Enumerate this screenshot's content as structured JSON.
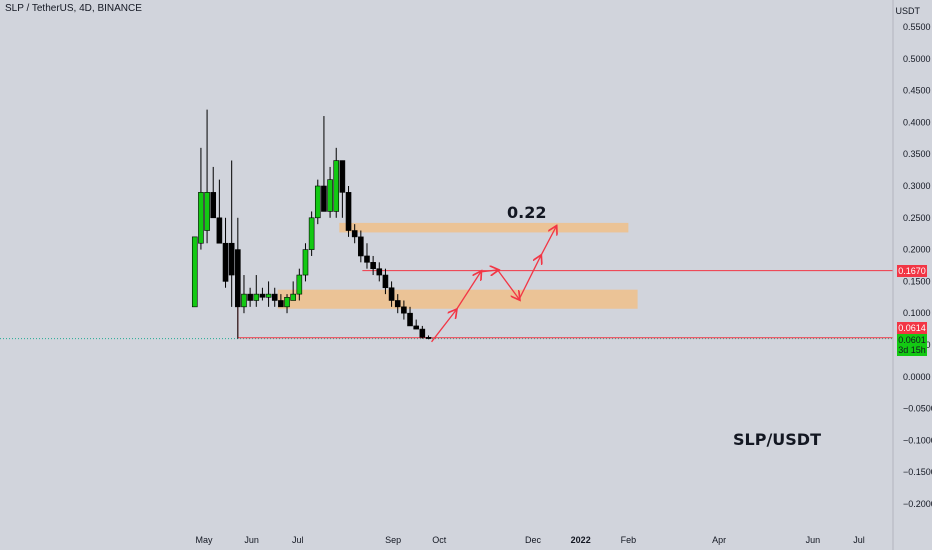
{
  "header": {
    "symbol_title": "SLP / TetherUS, 4D, BINANCE",
    "axis_unit": "USDT"
  },
  "annotations": {
    "target_label": "0.22",
    "pair_label": "SLP/USDT"
  },
  "price_tags": {
    "resistance": "0.1670",
    "last_low": "0.0614",
    "current": "0.0601",
    "countdown": "3d 15h"
  },
  "colors": {
    "background": "#d1d4dc",
    "up_candle": "#13c913",
    "down_candle": "#000000",
    "zone": "#f0c08a",
    "line": "#f23645",
    "arrow": "#f23645",
    "dotted": "#22ab94"
  },
  "chart_data": {
    "type": "candlestick",
    "title": "SLP / TetherUS, 4D, BINANCE",
    "ylabel": "USDT",
    "ylim": [
      -0.23,
      0.58
    ],
    "y_ticks": [
      "0.5500",
      "0.5000",
      "0.4500",
      "0.4000",
      "0.3500",
      "0.3000",
      "0.2500",
      "0.2000",
      "0.1500",
      "0.1000",
      "0.0500",
      "0.0000",
      "−0.0500",
      "−0.1000",
      "−0.1500",
      "−0.2000"
    ],
    "y_tick_values": [
      0.55,
      0.5,
      0.45,
      0.4,
      0.35,
      0.3,
      0.25,
      0.2,
      0.15,
      0.1,
      0.05,
      0.0,
      -0.05,
      -0.1,
      -0.15,
      -0.2
    ],
    "x_ticks": [
      {
        "label": "May",
        "date": "2021-05-01"
      },
      {
        "label": "Jun",
        "date": "2021-06-01"
      },
      {
        "label": "Jul",
        "date": "2021-07-01"
      },
      {
        "label": "Sep",
        "date": "2021-09-01"
      },
      {
        "label": "Oct",
        "date": "2021-10-01"
      },
      {
        "label": "Dec",
        "date": "2021-12-01"
      },
      {
        "label": "2022",
        "date": "2022-01-01"
      },
      {
        "label": "Feb",
        "date": "2022-02-01"
      },
      {
        "label": "Apr",
        "date": "2022-04-01"
      },
      {
        "label": "Jun",
        "date": "2022-06-01"
      },
      {
        "label": "Jul",
        "date": "2022-07-01"
      }
    ],
    "candles": [
      {
        "date": "2021-04-25",
        "o": 0.11,
        "h": 0.22,
        "l": 0.11,
        "c": 0.22
      },
      {
        "date": "2021-04-29",
        "o": 0.21,
        "h": 0.36,
        "l": 0.2,
        "c": 0.29
      },
      {
        "date": "2021-05-03",
        "o": 0.23,
        "h": 0.42,
        "l": 0.21,
        "c": 0.29
      },
      {
        "date": "2021-05-07",
        "o": 0.29,
        "h": 0.33,
        "l": 0.25,
        "c": 0.25
      },
      {
        "date": "2021-05-11",
        "o": 0.25,
        "h": 0.31,
        "l": 0.21,
        "c": 0.21
      },
      {
        "date": "2021-05-15",
        "o": 0.21,
        "h": 0.25,
        "l": 0.14,
        "c": 0.15
      },
      {
        "date": "2021-05-19",
        "o": 0.21,
        "h": 0.34,
        "l": 0.11,
        "c": 0.16
      },
      {
        "date": "2021-05-23",
        "o": 0.2,
        "h": 0.25,
        "l": 0.06,
        "c": 0.11
      },
      {
        "date": "2021-05-27",
        "o": 0.11,
        "h": 0.16,
        "l": 0.1,
        "c": 0.13
      },
      {
        "date": "2021-05-31",
        "o": 0.13,
        "h": 0.14,
        "l": 0.11,
        "c": 0.12
      },
      {
        "date": "2021-06-04",
        "o": 0.12,
        "h": 0.16,
        "l": 0.11,
        "c": 0.13
      },
      {
        "date": "2021-06-08",
        "o": 0.13,
        "h": 0.14,
        "l": 0.12,
        "c": 0.125
      },
      {
        "date": "2021-06-12",
        "o": 0.125,
        "h": 0.15,
        "l": 0.11,
        "c": 0.13
      },
      {
        "date": "2021-06-16",
        "o": 0.13,
        "h": 0.14,
        "l": 0.11,
        "c": 0.12
      },
      {
        "date": "2021-06-20",
        "o": 0.12,
        "h": 0.13,
        "l": 0.11,
        "c": 0.11
      },
      {
        "date": "2021-06-24",
        "o": 0.11,
        "h": 0.13,
        "l": 0.1,
        "c": 0.125
      },
      {
        "date": "2021-06-28",
        "o": 0.12,
        "h": 0.15,
        "l": 0.12,
        "c": 0.13
      },
      {
        "date": "2021-07-02",
        "o": 0.13,
        "h": 0.17,
        "l": 0.12,
        "c": 0.16
      },
      {
        "date": "2021-07-06",
        "o": 0.16,
        "h": 0.21,
        "l": 0.15,
        "c": 0.2
      },
      {
        "date": "2021-07-10",
        "o": 0.2,
        "h": 0.26,
        "l": 0.19,
        "c": 0.25
      },
      {
        "date": "2021-07-14",
        "o": 0.25,
        "h": 0.31,
        "l": 0.24,
        "c": 0.3
      },
      {
        "date": "2021-07-18",
        "o": 0.3,
        "h": 0.41,
        "l": 0.26,
        "c": 0.26
      },
      {
        "date": "2021-07-22",
        "o": 0.26,
        "h": 0.33,
        "l": 0.25,
        "c": 0.31
      },
      {
        "date": "2021-07-26",
        "o": 0.26,
        "h": 0.36,
        "l": 0.25,
        "c": 0.34
      },
      {
        "date": "2021-07-30",
        "o": 0.34,
        "h": 0.34,
        "l": 0.25,
        "c": 0.29
      },
      {
        "date": "2021-08-03",
        "o": 0.29,
        "h": 0.3,
        "l": 0.22,
        "c": 0.23
      },
      {
        "date": "2021-08-07",
        "o": 0.23,
        "h": 0.24,
        "l": 0.21,
        "c": 0.22
      },
      {
        "date": "2021-08-11",
        "o": 0.22,
        "h": 0.23,
        "l": 0.18,
        "c": 0.19
      },
      {
        "date": "2021-08-15",
        "o": 0.19,
        "h": 0.21,
        "l": 0.17,
        "c": 0.18
      },
      {
        "date": "2021-08-19",
        "o": 0.18,
        "h": 0.19,
        "l": 0.16,
        "c": 0.17
      },
      {
        "date": "2021-08-23",
        "o": 0.17,
        "h": 0.18,
        "l": 0.15,
        "c": 0.16
      },
      {
        "date": "2021-08-27",
        "o": 0.16,
        "h": 0.17,
        "l": 0.13,
        "c": 0.14
      },
      {
        "date": "2021-08-31",
        "o": 0.14,
        "h": 0.15,
        "l": 0.11,
        "c": 0.12
      },
      {
        "date": "2021-09-04",
        "o": 0.12,
        "h": 0.13,
        "l": 0.1,
        "c": 0.11
      },
      {
        "date": "2021-09-08",
        "o": 0.11,
        "h": 0.12,
        "l": 0.09,
        "c": 0.1
      },
      {
        "date": "2021-09-12",
        "o": 0.1,
        "h": 0.11,
        "l": 0.08,
        "c": 0.08
      },
      {
        "date": "2021-09-16",
        "o": 0.08,
        "h": 0.09,
        "l": 0.075,
        "c": 0.075
      },
      {
        "date": "2021-09-20",
        "o": 0.075,
        "h": 0.08,
        "l": 0.06,
        "c": 0.062
      },
      {
        "date": "2021-09-24",
        "o": 0.062,
        "h": 0.065,
        "l": 0.059,
        "c": 0.0601
      }
    ],
    "zones": [
      {
        "name": "resistance-zone",
        "y_low": 0.227,
        "y_high": 0.242,
        "x_start": "2021-07-28",
        "x_end": "2022-02-01"
      },
      {
        "name": "support-zone",
        "y_low": 0.107,
        "y_high": 0.137,
        "x_start": "2021-06-18",
        "x_end": "2022-02-07"
      }
    ],
    "horizontal_lines": [
      {
        "name": "resistance-line",
        "y": 0.167,
        "x_start": "2021-08-12"
      },
      {
        "name": "low-line",
        "y": 0.0614,
        "x_start": "2021-05-23"
      }
    ],
    "projection_path": [
      {
        "date": "2021-09-26",
        "y": 0.055
      },
      {
        "date": "2021-10-12",
        "y": 0.105
      },
      {
        "date": "2021-10-28",
        "y": 0.165
      },
      {
        "date": "2021-11-08",
        "y": 0.168
      },
      {
        "date": "2021-11-22",
        "y": 0.122
      },
      {
        "date": "2021-12-06",
        "y": 0.19
      },
      {
        "date": "2021-12-16",
        "y": 0.236
      }
    ]
  }
}
